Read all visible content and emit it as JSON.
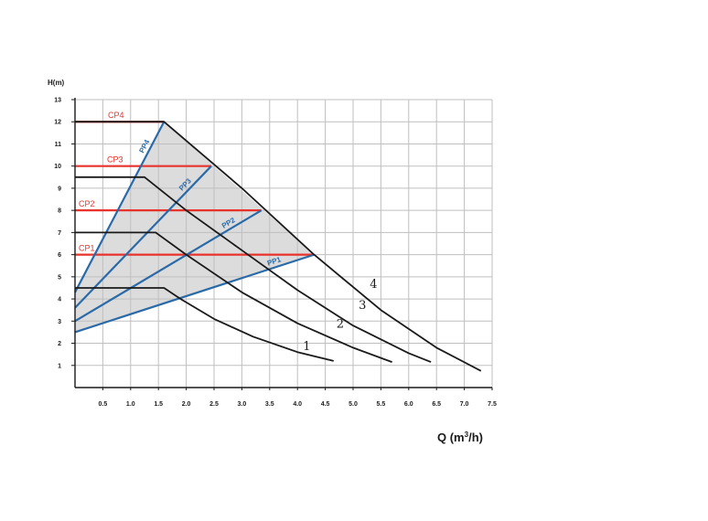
{
  "chart_data": {
    "type": "line",
    "xlabel": "Q (m",
    "xlabel_sup": "3",
    "xlabel_tail": "/h)",
    "ylabel": "H(m)",
    "xlim": [
      0,
      7.5
    ],
    "ylim": [
      0,
      13
    ],
    "x_ticks": [
      "0.5",
      "1.0",
      "1.5",
      "2.0",
      "2.5",
      "3.0",
      "3.5",
      "4.0",
      "4.5",
      "5.0",
      "5.5",
      "6.0",
      "6.5",
      "7.0",
      "7.5"
    ],
    "y_ticks": [
      "1",
      "2",
      "3",
      "4",
      "5",
      "6",
      "7",
      "8",
      "9",
      "10",
      "11",
      "12",
      "13"
    ],
    "grid": true,
    "colors": {
      "curve": "#1a1a1a",
      "cp": "#e8322c",
      "pp": "#2a6aa8",
      "region": "#dcdcdc",
      "grid": "#bfbfbf"
    },
    "shaded_region": [
      [
        0,
        2.5
      ],
      [
        0,
        4.3
      ],
      [
        1.6,
        12
      ],
      [
        4.3,
        6
      ]
    ],
    "series": [
      {
        "name": "1",
        "points": [
          [
            0,
            4.5
          ],
          [
            1.6,
            4.5
          ],
          [
            1.9,
            4.0
          ],
          [
            2.5,
            3.1
          ],
          [
            3.2,
            2.3
          ],
          [
            4.0,
            1.6
          ],
          [
            4.65,
            1.2
          ]
        ]
      },
      {
        "name": "2",
        "points": [
          [
            0,
            7.0
          ],
          [
            1.45,
            7.0
          ],
          [
            2.0,
            6.0
          ],
          [
            3.0,
            4.3
          ],
          [
            4.0,
            2.9
          ],
          [
            5.0,
            1.8
          ],
          [
            5.7,
            1.15
          ]
        ]
      },
      {
        "name": "3",
        "points": [
          [
            0,
            9.5
          ],
          [
            1.25,
            9.5
          ],
          [
            2.0,
            8.0
          ],
          [
            3.0,
            6.2
          ],
          [
            4.0,
            4.4
          ],
          [
            5.0,
            2.8
          ],
          [
            6.0,
            1.55
          ],
          [
            6.4,
            1.15
          ]
        ]
      },
      {
        "name": "4",
        "points": [
          [
            0,
            12.0
          ],
          [
            1.6,
            12.0
          ],
          [
            3.0,
            9.0
          ],
          [
            4.3,
            6.0
          ],
          [
            5.5,
            3.5
          ],
          [
            6.5,
            1.8
          ],
          [
            7.3,
            0.75
          ]
        ]
      }
    ],
    "cp_lines": [
      {
        "label": "CP1",
        "y": 6,
        "x_end": 4.3
      },
      {
        "label": "CP2",
        "y": 8,
        "x_end": 3.35
      },
      {
        "label": "CP3",
        "y": 10,
        "x_end": 2.45
      },
      {
        "label": "CP4",
        "y": 12,
        "x_end": 1.6
      }
    ],
    "pp_lines": [
      {
        "label": "PP1",
        "start": [
          0,
          2.5
        ],
        "end": [
          4.3,
          6
        ]
      },
      {
        "label": "PP2",
        "start": [
          0,
          3.0
        ],
        "end": [
          3.35,
          8
        ]
      },
      {
        "label": "PP3",
        "start": [
          0,
          3.6
        ],
        "end": [
          2.45,
          10
        ]
      },
      {
        "label": "PP4",
        "start": [
          0,
          4.3
        ],
        "end": [
          1.6,
          12
        ]
      }
    ]
  }
}
